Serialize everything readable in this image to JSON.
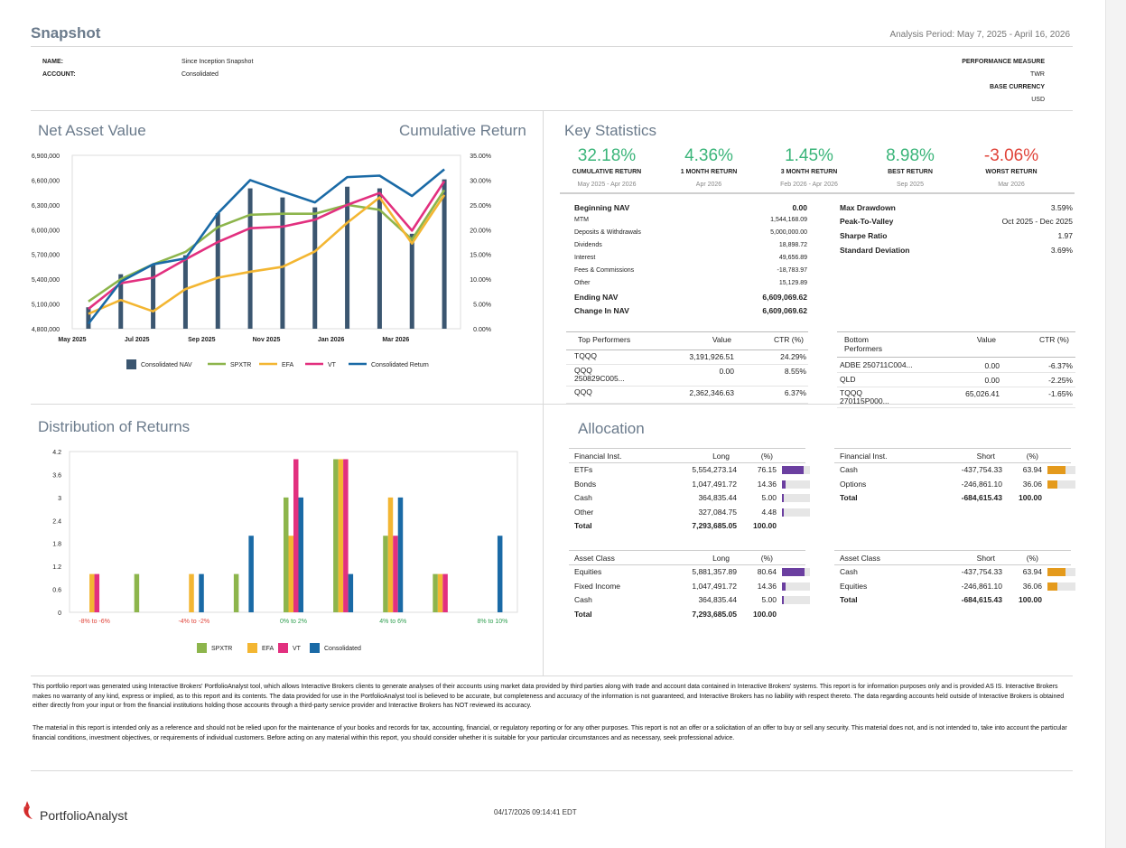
{
  "header": {
    "title": "Snapshot",
    "analysis_label": "Analysis Period: ",
    "analysis_period": "May 7, 2025 - April 16, 2026",
    "name_label": "NAME:",
    "name_value": "Since Inception Snapshot",
    "account_label": "ACCOUNT:",
    "account_value": "Consolidated",
    "perf_measure_label": "PERFORMANCE MEASURE",
    "perf_measure_value": "TWR",
    "base_currency_label": "BASE CURRENCY",
    "base_currency_value": "USD"
  },
  "nav_section": {
    "title": "Net Asset Value",
    "right_title": "Cumulative Return",
    "legend": [
      "Consolidated NAV",
      "SPXTR",
      "EFA",
      "VT",
      "Consolidated Return"
    ],
    "colors": {
      "nav": "#3b5670",
      "spxtr": "#8db54c",
      "efa": "#f3b632",
      "vt": "#e2307f",
      "ret": "#1a6aa6"
    }
  },
  "key_stats": {
    "title": "Key Statistics",
    "items": [
      {
        "value": "32.18%",
        "label": "CUMULATIVE RETURN",
        "sub": "May 2025 - Apr 2026",
        "color": "#3bb57a"
      },
      {
        "value": "4.36%",
        "label": "1 MONTH RETURN",
        "sub": "Apr 2026",
        "color": "#3bb57a"
      },
      {
        "value": "1.45%",
        "label": "3 MONTH RETURN",
        "sub": "Feb 2026 - Apr 2026",
        "color": "#3bb57a"
      },
      {
        "value": "8.98%",
        "label": "BEST RETURN",
        "sub": "Sep 2025",
        "color": "#3bb57a"
      },
      {
        "value": "-3.06%",
        "label": "WORST RETURN",
        "sub": "Mar 2026",
        "color": "#e0443a"
      }
    ],
    "nav_rows": [
      {
        "label": "Beginning NAV",
        "value": "0.00",
        "bold": true
      },
      {
        "label": "MTM",
        "value": "1,544,168.09",
        "bold": false
      },
      {
        "label": "Deposits & Withdrawals",
        "value": "5,000,000.00",
        "bold": false
      },
      {
        "label": "Dividends",
        "value": "18,898.72",
        "bold": false
      },
      {
        "label": "Interest",
        "value": "49,656.89",
        "bold": false
      },
      {
        "label": "Fees & Commissions",
        "value": "-18,783.97",
        "bold": false
      },
      {
        "label": "Other",
        "value": "15,129.89",
        "bold": false
      },
      {
        "label": "Ending NAV",
        "value": "6,609,069.62",
        "bold": true
      },
      {
        "label": "Change In NAV",
        "value": "6,609,069.62",
        "bold": true
      }
    ],
    "risk_rows": [
      {
        "label": "Max Drawdown",
        "value": "3.59%"
      },
      {
        "label": "Peak-To-Valley",
        "value": "Oct 2025 - Dec 2025"
      },
      {
        "label": "Sharpe Ratio",
        "value": "1.97"
      },
      {
        "label": "Standard Deviation",
        "value": "3.69%"
      }
    ],
    "top": {
      "headers": [
        "Top Performers",
        "Value",
        "CTR (%)"
      ],
      "rows": [
        {
          "name": "TQQQ",
          "name2": "",
          "value": "3,191,926.51",
          "ctr": "24.29%"
        },
        {
          "name": "QQQ",
          "name2": "250829C005...",
          "value": "0.00",
          "ctr": "8.55%"
        },
        {
          "name": "QQQ",
          "name2": "",
          "value": "2,362,346.63",
          "ctr": "6.37%"
        }
      ]
    },
    "bottom": {
      "headers": [
        "Bottom",
        "Performers",
        "Value",
        "CTR (%)"
      ],
      "rows": [
        {
          "name": "ADBE  250711C004...",
          "name2": "",
          "value": "0.00",
          "ctr": "-6.37%"
        },
        {
          "name": "QLD",
          "name2": "",
          "value": "0.00",
          "ctr": "-2.25%"
        },
        {
          "name": "TQQQ",
          "name2": "270115P000...",
          "value": "65,026.41",
          "ctr": "-1.65%"
        }
      ]
    }
  },
  "distribution": {
    "title": "Distribution of Returns",
    "legend": [
      "SPXTR",
      "EFA",
      "VT",
      "Consolidated"
    ]
  },
  "chart_data": [
    {
      "type": "bar+line",
      "title": "Net Asset Value",
      "right_axis_title": "Cumulative Return",
      "x": [
        "May 2025",
        "Jun 2025",
        "Jul 2025",
        "Aug 2025",
        "Sep 2025",
        "Oct 2025",
        "Nov 2025",
        "Dec 2025",
        "Jan 2026",
        "Feb 2026",
        "Mar 2026",
        "Apr 2026"
      ],
      "x_tick_labels": [
        "May 2025",
        "Jul 2025",
        "Sep 2025",
        "Nov 2025",
        "Jan 2026",
        "Mar 2026"
      ],
      "ylim_left": [
        4800000,
        6900000
      ],
      "y_ticks_left": [
        "4,800,000",
        "5,100,000",
        "5,400,000",
        "5,700,000",
        "6,000,000",
        "6,300,000",
        "6,600,000",
        "6,900,000"
      ],
      "ylim_right": [
        0,
        35
      ],
      "y_ticks_right": [
        "0.00%",
        "5.00%",
        "10.00%",
        "15.00%",
        "20.00%",
        "25.00%",
        "30.00%",
        "35.00%"
      ],
      "grid": false,
      "legend_position": "bottom",
      "series": [
        {
          "name": "Consolidated NAV",
          "type": "bar",
          "axis": "left",
          "values": [
            5060000,
            5460000,
            5580000,
            5690000,
            6200000,
            6500000,
            6390000,
            6270000,
            6520000,
            6500000,
            5950000,
            6609069
          ]
        },
        {
          "name": "SPXTR",
          "type": "line",
          "axis": "right",
          "values": [
            5.5,
            10.0,
            13.0,
            15.5,
            20.5,
            23.0,
            23.2,
            23.2,
            25.0,
            24.0,
            18.0,
            28.0
          ]
        },
        {
          "name": "EFA",
          "type": "line",
          "axis": "right",
          "values": [
            3.0,
            5.8,
            3.5,
            8.0,
            10.3,
            11.5,
            12.5,
            15.6,
            21.4,
            26.5,
            17.2,
            27.0
          ]
        },
        {
          "name": "VT",
          "type": "line",
          "axis": "right",
          "values": [
            4.0,
            9.2,
            10.3,
            14.0,
            17.5,
            20.3,
            20.6,
            22.0,
            25.0,
            27.4,
            19.8,
            29.8
          ]
        },
        {
          "name": "Consolidated Return",
          "type": "line",
          "axis": "right",
          "values": [
            1.0,
            9.5,
            13.0,
            14.2,
            23.3,
            30.0,
            27.7,
            25.5,
            30.6,
            30.9,
            26.8,
            32.18
          ]
        }
      ]
    },
    {
      "type": "bar",
      "title": "Distribution of Returns",
      "categories": [
        "-8% to -6%",
        "-6% to -4%",
        "-4% to -2%",
        "-2% to 0%",
        "0% to 2%",
        "2% to 4%",
        "4% to 6%",
        "6% to 8%",
        "8% to 10%"
      ],
      "x_tick_labels": [
        "-8% to -6%",
        "-4% to -2%",
        "0% to 2%",
        "4% to 6%",
        "8% to 10%"
      ],
      "x_tick_colors": [
        "#e0443a",
        "#e0443a",
        "#2e9e4f",
        "#2e9e4f",
        "#2e9e4f"
      ],
      "ylim": [
        0,
        4.2
      ],
      "y_ticks": [
        "0",
        "0.6",
        "1.2",
        "1.8",
        "2.4",
        "3",
        "3.6",
        "4.2"
      ],
      "legend_position": "bottom",
      "series": [
        {
          "name": "SPXTR",
          "values": [
            0,
            1,
            0,
            1,
            3,
            4,
            2,
            1,
            0
          ]
        },
        {
          "name": "EFA",
          "values": [
            1,
            0,
            1,
            0,
            2,
            4,
            3,
            1,
            0
          ]
        },
        {
          "name": "VT",
          "values": [
            1,
            0,
            0,
            0,
            4,
            4,
            2,
            1,
            0
          ]
        },
        {
          "name": "Consolidated",
          "values": [
            0,
            0,
            1,
            2,
            3,
            1,
            3,
            0,
            2
          ]
        }
      ]
    }
  ],
  "allocation": {
    "title": "Allocation",
    "fin_long": {
      "headers": [
        "Financial Inst.",
        "Long",
        "(%)"
      ],
      "rows": [
        {
          "name": "ETFs",
          "value": "5,554,273.14",
          "pct": "76.15",
          "frac": 0.7615
        },
        {
          "name": "Bonds",
          "value": "1,047,491.72",
          "pct": "14.36",
          "frac": 0.1436
        },
        {
          "name": "Cash",
          "value": "364,835.44",
          "pct": "5.00",
          "frac": 0.05
        },
        {
          "name": "Other",
          "value": "327,084.75",
          "pct": "4.48",
          "frac": 0.0448
        }
      ],
      "total_label": "Total",
      "total_value": "7,293,685.05",
      "total_pct": "100.00"
    },
    "fin_short": {
      "headers": [
        "Financial Inst.",
        "Short",
        "(%)"
      ],
      "rows": [
        {
          "name": "Cash",
          "value": "-437,754.33",
          "pct": "63.94",
          "frac": 0.6394
        },
        {
          "name": "Options",
          "value": "-246,861.10",
          "pct": "36.06",
          "frac": 0.3606
        }
      ],
      "total_label": "Total",
      "total_value": "-684,615.43",
      "total_pct": "100.00"
    },
    "asset_long": {
      "headers": [
        "Asset Class",
        "Long",
        "(%)"
      ],
      "rows": [
        {
          "name": "Equities",
          "value": "5,881,357.89",
          "pct": "80.64",
          "frac": 0.8064
        },
        {
          "name": "Fixed Income",
          "value": "1,047,491.72",
          "pct": "14.36",
          "frac": 0.1436
        },
        {
          "name": "Cash",
          "value": "364,835.44",
          "pct": "5.00",
          "frac": 0.05
        }
      ],
      "total_label": "Total",
      "total_value": "7,293,685.05",
      "total_pct": "100.00"
    },
    "asset_short": {
      "headers": [
        "Asset Class",
        "Short",
        "(%)"
      ],
      "rows": [
        {
          "name": "Cash",
          "value": "-437,754.33",
          "pct": "63.94",
          "frac": 0.6394
        },
        {
          "name": "Equities",
          "value": "-246,861.10",
          "pct": "36.06",
          "frac": 0.3606
        }
      ],
      "total_label": "Total",
      "total_value": "-684,615.43",
      "total_pct": "100.00"
    },
    "long_color": "#6b3fa0",
    "short_color": "#e49a1c"
  },
  "disclaimer": {
    "p1": "This portfolio report was generated using Interactive Brokers' PortfolioAnalyst tool, which allows Interactive Brokers clients to generate analyses of their accounts using market data provided by third parties along with trade and account data contained in Interactive Brokers' systems. This report is for information purposes only and is provided AS IS. Interactive Brokers makes no warranty of any kind, express or implied, as to this report and its contents. The data provided for use in the PortfolioAnalyst tool is believed to be accurate, but completeness and accuracy of the information is not guaranteed, and Interactive Brokers has no liability with respect thereto. The data regarding accounts held outside of Interactive Brokers is obtained either directly from your input or from the financial institutions holding those accounts through a third-party service provider and Interactive Brokers has NOT reviewed its accuracy.",
    "p2": "The material in this report is intended only as a reference and should not be relied upon for the maintenance of your books and records for tax, accounting, financial, or regulatory reporting or for any other purposes. This report is not an offer or a solicitation of an offer to buy or sell any security. This material does not, and is not intended to, take into account the particular financial conditions, investment objectives, or requirements of individual customers. Before acting on any material within this report, you should consider whether it is suitable for your particular circumstances and as necessary, seek professional advice."
  },
  "footer": {
    "brand": "PortfolioAnalyst",
    "timestamp": "04/17/2026 09:14:41 EDT"
  }
}
